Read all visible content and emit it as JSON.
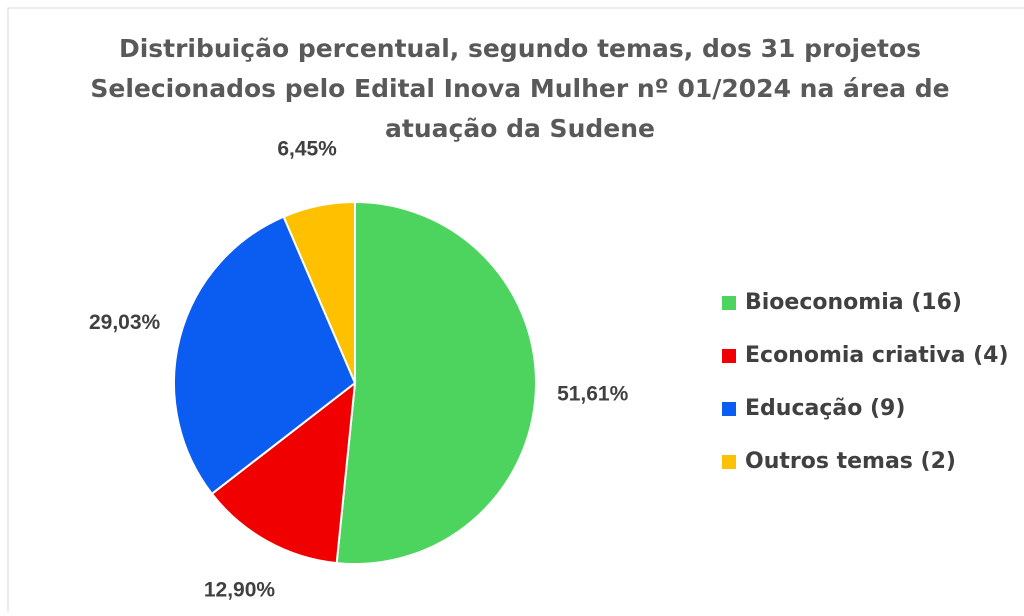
{
  "chart_data": {
    "type": "pie",
    "title": [
      "Distribuição percentual, segundo temas, dos 31 projetos",
      "Selecionados pelo Edital Inova Mulher nº 01/2024 na área de",
      "atuação da Sudene"
    ],
    "categories": [
      "Bioeconomia (16)",
      "Economia criativa (4)",
      "Educação (9)",
      "Outros temas (2)"
    ],
    "values": [
      51.61,
      12.9,
      29.03,
      6.45
    ],
    "value_labels": [
      "51,61%",
      "12,90%",
      "29,03%",
      "6,45%"
    ],
    "colors": [
      "#4cd45e",
      "#f00000",
      "#0b5cf0",
      "#ffc000"
    ],
    "legend": "right"
  }
}
